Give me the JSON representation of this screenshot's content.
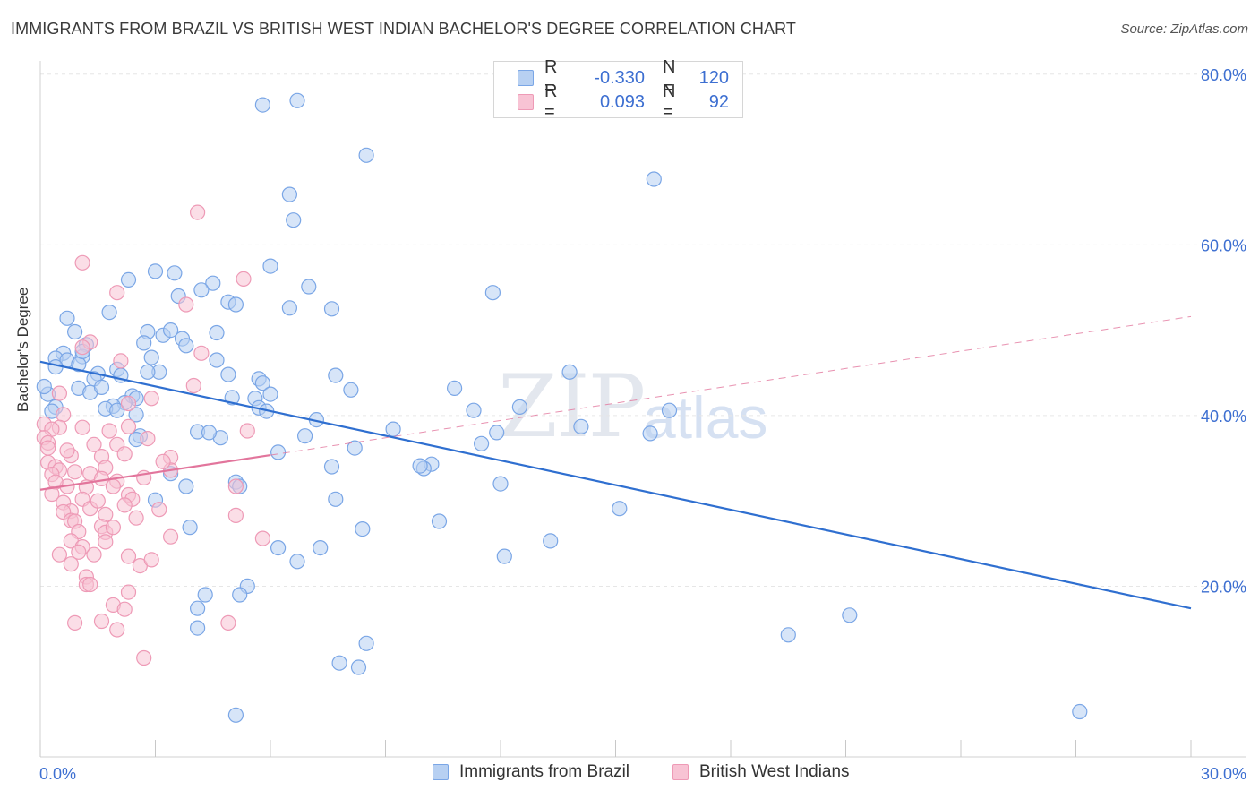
{
  "title": "IMMIGRANTS FROM BRAZIL VS BRITISH WEST INDIAN BACHELOR'S DEGREE CORRELATION CHART",
  "source": "Source: ZipAtlas.com",
  "watermark": {
    "zip": "ZIP",
    "atlas": "atlas"
  },
  "colors": {
    "blue_fill": "#b7d0f2",
    "blue_stroke": "#7aa6e6",
    "blue_line": "#2f6fd0",
    "pink_fill": "#f8c3d4",
    "pink_stroke": "#ee9ab6",
    "pink_line": "#e2759c",
    "axis_text": "#3d6fd1",
    "grid": "#e6e6e6"
  },
  "legend_top": [
    {
      "r_label": "R =",
      "r_value": "-0.330",
      "n_label": "N =",
      "n_value": "120"
    },
    {
      "r_label": "R =",
      "r_value": "0.093",
      "n_label": "N =",
      "n_value": "92"
    }
  ],
  "chart_data": {
    "type": "scatter",
    "title": "IMMIGRANTS FROM BRAZIL VS BRITISH WEST INDIAN BACHELOR'S DEGREE CORRELATION CHART",
    "xlabel": "",
    "ylabel": "Bachelor's Degree",
    "xlim": [
      0,
      30
    ],
    "ylim": [
      0,
      80
    ],
    "x_tick_labels": [
      "0.0%",
      "30.0%"
    ],
    "y_tick_labels": [
      "20.0%",
      "40.0%",
      "60.0%",
      "80.0%"
    ],
    "y_tick_values": [
      20,
      40,
      60,
      80
    ],
    "grid": true,
    "series": [
      {
        "name": "Immigrants from Brazil",
        "color": "blue",
        "R": -0.33,
        "N": 120,
        "trend": {
          "x": [
            0,
            30
          ],
          "y": [
            46.3,
            17.4
          ],
          "style": "solid"
        },
        "points": [
          [
            5.8,
            76.4
          ],
          [
            6.7,
            76.9
          ],
          [
            8.5,
            70.5
          ],
          [
            6.5,
            65.9
          ],
          [
            6.6,
            62.9
          ],
          [
            16.0,
            67.7
          ],
          [
            6.0,
            57.5
          ],
          [
            3.0,
            56.9
          ],
          [
            3.5,
            56.7
          ],
          [
            2.3,
            55.9
          ],
          [
            4.5,
            55.5
          ],
          [
            7.0,
            55.1
          ],
          [
            4.2,
            54.7
          ],
          [
            11.8,
            54.4
          ],
          [
            3.6,
            54.0
          ],
          [
            4.9,
            53.3
          ],
          [
            5.1,
            53.0
          ],
          [
            6.5,
            52.6
          ],
          [
            7.6,
            52.5
          ],
          [
            1.8,
            52.1
          ],
          [
            0.7,
            51.4
          ],
          [
            0.9,
            49.8
          ],
          [
            2.8,
            49.8
          ],
          [
            4.6,
            49.7
          ],
          [
            3.2,
            49.4
          ],
          [
            3.7,
            49.0
          ],
          [
            2.7,
            48.5
          ],
          [
            1.2,
            48.3
          ],
          [
            3.8,
            48.2
          ],
          [
            0.6,
            47.3
          ],
          [
            1.1,
            46.9
          ],
          [
            2.9,
            46.8
          ],
          [
            0.4,
            46.7
          ],
          [
            0.7,
            46.5
          ],
          [
            1.0,
            46.0
          ],
          [
            4.6,
            46.5
          ],
          [
            0.4,
            45.7
          ],
          [
            2.0,
            45.4
          ],
          [
            3.1,
            45.1
          ],
          [
            1.5,
            44.9
          ],
          [
            1.4,
            44.3
          ],
          [
            4.9,
            44.8
          ],
          [
            5.7,
            44.3
          ],
          [
            7.7,
            44.7
          ],
          [
            13.8,
            45.1
          ],
          [
            1.0,
            43.2
          ],
          [
            2.1,
            44.7
          ],
          [
            5.8,
            43.8
          ],
          [
            8.1,
            43.0
          ],
          [
            10.8,
            43.2
          ],
          [
            1.3,
            42.7
          ],
          [
            2.4,
            42.3
          ],
          [
            2.5,
            42.0
          ],
          [
            5.0,
            42.1
          ],
          [
            5.6,
            42.0
          ],
          [
            0.2,
            42.5
          ],
          [
            2.2,
            41.5
          ],
          [
            0.4,
            41.0
          ],
          [
            1.9,
            41.1
          ],
          [
            1.7,
            40.8
          ],
          [
            2.0,
            40.6
          ],
          [
            5.7,
            40.9
          ],
          [
            5.9,
            40.5
          ],
          [
            2.5,
            40.1
          ],
          [
            11.3,
            40.6
          ],
          [
            12.5,
            41.0
          ],
          [
            16.4,
            40.6
          ],
          [
            7.2,
            39.5
          ],
          [
            4.1,
            38.1
          ],
          [
            9.2,
            38.4
          ],
          [
            14.1,
            38.7
          ],
          [
            2.6,
            37.6
          ],
          [
            2.5,
            37.2
          ],
          [
            4.7,
            37.4
          ],
          [
            6.9,
            37.6
          ],
          [
            11.9,
            38.0
          ],
          [
            8.2,
            36.2
          ],
          [
            11.5,
            36.7
          ],
          [
            15.9,
            37.9
          ],
          [
            6.2,
            35.7
          ],
          [
            10.2,
            34.3
          ],
          [
            7.6,
            34.0
          ],
          [
            10.0,
            33.8
          ],
          [
            3.4,
            33.2
          ],
          [
            5.1,
            32.2
          ],
          [
            3.8,
            31.7
          ],
          [
            5.2,
            31.7
          ],
          [
            12.0,
            32.0
          ],
          [
            3.0,
            30.1
          ],
          [
            7.7,
            30.2
          ],
          [
            15.1,
            29.1
          ],
          [
            3.9,
            26.9
          ],
          [
            10.4,
            27.6
          ],
          [
            8.4,
            26.7
          ],
          [
            13.3,
            25.3
          ],
          [
            6.2,
            24.5
          ],
          [
            7.3,
            24.5
          ],
          [
            12.1,
            23.5
          ],
          [
            6.7,
            22.9
          ],
          [
            5.4,
            20.0
          ],
          [
            4.3,
            19.0
          ],
          [
            5.2,
            19.0
          ],
          [
            4.1,
            17.4
          ],
          [
            21.1,
            16.6
          ],
          [
            4.1,
            15.1
          ],
          [
            19.5,
            14.3
          ],
          [
            8.5,
            13.3
          ],
          [
            7.8,
            11.0
          ],
          [
            8.3,
            10.5
          ],
          [
            5.1,
            4.9
          ],
          [
            27.1,
            5.3
          ],
          [
            0.1,
            43.4
          ],
          [
            0.3,
            40.5
          ],
          [
            1.1,
            47.5
          ],
          [
            3.4,
            50.0
          ],
          [
            6.0,
            42.5
          ],
          [
            2.8,
            45.1
          ],
          [
            1.6,
            43.3
          ],
          [
            4.4,
            38.0
          ],
          [
            9.9,
            34.1
          ]
        ]
      },
      {
        "name": "British West Indians",
        "color": "pink",
        "R": 0.093,
        "N": 92,
        "trend": {
          "x": [
            0,
            30
          ],
          "y": [
            31.3,
            51.6
          ],
          "style": "solid-then-dashed",
          "solid_until_x": 6.0
        },
        "points": [
          [
            4.1,
            63.8
          ],
          [
            1.1,
            57.9
          ],
          [
            5.3,
            56.0
          ],
          [
            2.0,
            54.4
          ],
          [
            3.8,
            53.0
          ],
          [
            1.3,
            48.6
          ],
          [
            1.1,
            48.0
          ],
          [
            4.2,
            47.3
          ],
          [
            2.1,
            46.4
          ],
          [
            4.0,
            43.5
          ],
          [
            0.5,
            42.6
          ],
          [
            2.9,
            42.0
          ],
          [
            2.3,
            41.4
          ],
          [
            0.6,
            40.1
          ],
          [
            0.1,
            39.0
          ],
          [
            0.5,
            38.6
          ],
          [
            1.1,
            38.6
          ],
          [
            2.3,
            38.7
          ],
          [
            5.4,
            38.2
          ],
          [
            0.3,
            38.4
          ],
          [
            0.1,
            37.4
          ],
          [
            0.2,
            36.8
          ],
          [
            2.8,
            37.3
          ],
          [
            1.4,
            36.6
          ],
          [
            2.0,
            36.6
          ],
          [
            1.6,
            35.2
          ],
          [
            2.2,
            35.5
          ],
          [
            3.4,
            35.1
          ],
          [
            0.8,
            35.3
          ],
          [
            0.2,
            34.5
          ],
          [
            0.4,
            34.0
          ],
          [
            0.5,
            33.6
          ],
          [
            0.3,
            33.1
          ],
          [
            1.3,
            33.2
          ],
          [
            1.7,
            33.9
          ],
          [
            3.4,
            33.6
          ],
          [
            1.6,
            32.6
          ],
          [
            2.0,
            32.3
          ],
          [
            2.7,
            32.7
          ],
          [
            1.9,
            31.7
          ],
          [
            0.7,
            31.7
          ],
          [
            1.2,
            31.6
          ],
          [
            5.1,
            31.7
          ],
          [
            2.3,
            30.7
          ],
          [
            1.1,
            30.2
          ],
          [
            0.6,
            29.8
          ],
          [
            0.8,
            28.8
          ],
          [
            1.3,
            29.1
          ],
          [
            2.4,
            30.2
          ],
          [
            3.1,
            29.0
          ],
          [
            1.7,
            28.4
          ],
          [
            0.6,
            28.7
          ],
          [
            5.1,
            28.3
          ],
          [
            0.8,
            27.7
          ],
          [
            0.9,
            27.6
          ],
          [
            1.6,
            27.0
          ],
          [
            1.0,
            26.4
          ],
          [
            1.7,
            26.3
          ],
          [
            3.4,
            25.8
          ],
          [
            0.8,
            25.3
          ],
          [
            5.8,
            25.6
          ],
          [
            1.7,
            25.2
          ],
          [
            1.1,
            24.6
          ],
          [
            2.3,
            23.5
          ],
          [
            1.4,
            23.7
          ],
          [
            0.5,
            23.7
          ],
          [
            2.6,
            22.4
          ],
          [
            0.8,
            22.6
          ],
          [
            1.2,
            21.1
          ],
          [
            1.2,
            20.2
          ],
          [
            1.3,
            20.2
          ],
          [
            2.3,
            19.3
          ],
          [
            1.9,
            17.8
          ],
          [
            2.2,
            17.3
          ],
          [
            1.6,
            15.9
          ],
          [
            0.9,
            15.7
          ],
          [
            4.9,
            15.7
          ],
          [
            2.0,
            14.9
          ],
          [
            2.7,
            11.6
          ],
          [
            0.2,
            36.2
          ],
          [
            0.9,
            33.4
          ],
          [
            1.5,
            30.0
          ],
          [
            2.5,
            28.0
          ],
          [
            1.0,
            24.0
          ],
          [
            0.4,
            32.2
          ],
          [
            1.9,
            26.9
          ],
          [
            2.9,
            23.1
          ],
          [
            0.7,
            35.9
          ],
          [
            2.2,
            29.5
          ],
          [
            1.8,
            38.2
          ],
          [
            0.3,
            30.8
          ],
          [
            3.2,
            34.6
          ]
        ]
      }
    ]
  },
  "bottom_legend": [
    {
      "label": "Immigrants from Brazil",
      "color": "blue"
    },
    {
      "label": "British West Indians",
      "color": "pink"
    }
  ]
}
